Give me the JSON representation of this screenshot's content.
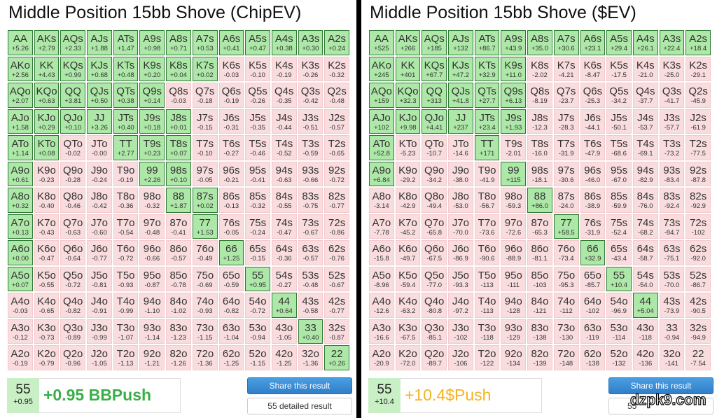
{
  "hands": [
    [
      "AA",
      "AKs",
      "AQs",
      "AJs",
      "ATs",
      "A9s",
      "A8s",
      "A7s",
      "A6s",
      "A5s",
      "A4s",
      "A3s",
      "A2s"
    ],
    [
      "AKo",
      "KK",
      "KQs",
      "KJs",
      "KTs",
      "K9s",
      "K8s",
      "K7s",
      "K6s",
      "K5s",
      "K4s",
      "K3s",
      "K2s"
    ],
    [
      "AQo",
      "KQo",
      "QQ",
      "QJs",
      "QTs",
      "Q9s",
      "Q8s",
      "Q7s",
      "Q6s",
      "Q5s",
      "Q4s",
      "Q3s",
      "Q2s"
    ],
    [
      "AJo",
      "KJo",
      "QJo",
      "JJ",
      "JTs",
      "J9s",
      "J8s",
      "J7s",
      "J6s",
      "J5s",
      "J4s",
      "J3s",
      "J2s"
    ],
    [
      "ATo",
      "KTo",
      "QTo",
      "JTo",
      "TT",
      "T9s",
      "T8s",
      "T7s",
      "T6s",
      "T5s",
      "T4s",
      "T3s",
      "T2s"
    ],
    [
      "A9o",
      "K9o",
      "Q9o",
      "J9o",
      "T9o",
      "99",
      "98s",
      "97s",
      "96s",
      "95s",
      "94s",
      "93s",
      "92s"
    ],
    [
      "A8o",
      "K8o",
      "Q8o",
      "J8o",
      "T8o",
      "98o",
      "88",
      "87s",
      "86s",
      "85s",
      "84s",
      "83s",
      "82s"
    ],
    [
      "A7o",
      "K7o",
      "Q7o",
      "J7o",
      "T7o",
      "97o",
      "87o",
      "77",
      "76s",
      "75s",
      "74s",
      "73s",
      "72s"
    ],
    [
      "A6o",
      "K6o",
      "Q6o",
      "J6o",
      "T6o",
      "96o",
      "86o",
      "76o",
      "66",
      "65s",
      "64s",
      "63s",
      "62s"
    ],
    [
      "A5o",
      "K5o",
      "Q5o",
      "J5o",
      "T5o",
      "95o",
      "85o",
      "75o",
      "65o",
      "55",
      "54s",
      "53s",
      "52s"
    ],
    [
      "A4o",
      "K4o",
      "Q4o",
      "J4o",
      "T4o",
      "94o",
      "84o",
      "74o",
      "64o",
      "54o",
      "44",
      "43s",
      "42s"
    ],
    [
      "A3o",
      "K3o",
      "Q3o",
      "J3o",
      "T3o",
      "93o",
      "83o",
      "73o",
      "63o",
      "53o",
      "43o",
      "33",
      "32s"
    ],
    [
      "A2o",
      "K2o",
      "Q2o",
      "J2o",
      "T2o",
      "92o",
      "82o",
      "72o",
      "62o",
      "52o",
      "42o",
      "32o",
      "22"
    ]
  ],
  "panels": [
    {
      "title": "Middle Position 15bb Shove (ChipEV)",
      "values": [
        [
          "+5.26",
          "+2.79",
          "+2.33",
          "+1.88",
          "+1.47",
          "+0.98",
          "+0.71",
          "+0.53",
          "+0.41",
          "+0.47",
          "+0.38",
          "+0.30",
          "+0.24"
        ],
        [
          "+2.56",
          "+4.43",
          "+0.99",
          "+0.68",
          "+0.48",
          "+0.20",
          "+0.04",
          "+0.02",
          "-0.03",
          "-0.10",
          "-0.19",
          "-0.26",
          "-0.32"
        ],
        [
          "+2.07",
          "+0.63",
          "+3.81",
          "+0.50",
          "+0.38",
          "+0.14",
          "-0.03",
          "-0.18",
          "-0.19",
          "-0.26",
          "-0.35",
          "-0.42",
          "-0.48"
        ],
        [
          "+1.58",
          "+0.29",
          "+0.10",
          "+3.26",
          "+0.40",
          "+0.18",
          "+0.01",
          "-0.15",
          "-0.31",
          "-0.35",
          "-0.44",
          "-0.51",
          "-0.57"
        ],
        [
          "+1.14",
          "+0.08",
          "-0.02",
          "-0.00",
          "+2.77",
          "+0.23",
          "+0.07",
          "-0.10",
          "-0.27",
          "-0.46",
          "-0.52",
          "-0.59",
          "-0.65"
        ],
        [
          "+0.61",
          "-0.23",
          "-0.28",
          "-0.24",
          "-0.19",
          "+2.26",
          "+0.10",
          "-0.05",
          "-0.21",
          "-0.41",
          "-0.63",
          "-0.66",
          "-0.72"
        ],
        [
          "+0.32",
          "-0.40",
          "-0.46",
          "-0.42",
          "-0.36",
          "-0.32",
          "+1.87",
          "+0.02",
          "-0.13",
          "-0.32",
          "-0.55",
          "-0.75",
          "-0.77"
        ],
        [
          "+0.13",
          "-0.43",
          "-0.63",
          "-0.60",
          "-0.54",
          "-0.48",
          "-0.41",
          "+1.53",
          "-0.05",
          "-0.24",
          "-0.47",
          "-0.67",
          "-0.86"
        ],
        [
          "+0.00",
          "-0.47",
          "-0.64",
          "-0.77",
          "-0.72",
          "-0.66",
          "-0.57",
          "-0.49",
          "+1.25",
          "-0.15",
          "-0.36",
          "-0.57",
          "-0.76"
        ],
        [
          "+0.07",
          "-0.55",
          "-0.72",
          "-0.81",
          "-0.93",
          "-0.87",
          "-0.78",
          "-0.69",
          "-0.59",
          "+0.95",
          "-0.27",
          "-0.48",
          "-0.67"
        ],
        [
          "-0.03",
          "-0.65",
          "-0.82",
          "-0.91",
          "-0.99",
          "-1.10",
          "-1.02",
          "-0.93",
          "-0.82",
          "-0.72",
          "+0.64",
          "-0.58",
          "-0.77"
        ],
        [
          "-0.12",
          "-0.73",
          "-0.89",
          "-0.99",
          "-1.07",
          "-1.14",
          "-1.23",
          "-1.15",
          "-1.04",
          "-0.94",
          "-1.05",
          "+0.40",
          "-0.87"
        ],
        [
          "-0.19",
          "-0.79",
          "-0.96",
          "-1.05",
          "-1.13",
          "-1.21",
          "-1.26",
          "-1.36",
          "-1.25",
          "-1.15",
          "-1.25",
          "-1.36",
          "+0.26"
        ]
      ],
      "summary": {
        "hand": "55",
        "value": "+0.95",
        "result": "+0.95 BBPush"
      },
      "buttons": {
        "share": "Share this result",
        "detail": "55 detailed result"
      }
    },
    {
      "title": "Middle Position 15bb Shove ($EV)",
      "values": [
        [
          "+525",
          "+266",
          "+185",
          "+132",
          "+86.7",
          "+43.9",
          "+35.0",
          "+30.6",
          "+23.1",
          "+29.4",
          "+26.1",
          "+22.4",
          "+18.4"
        ],
        [
          "+245",
          "+401",
          "+67.7",
          "+47.2",
          "+32.9",
          "+11.0",
          "-2.02",
          "-4.21",
          "-8.47",
          "-17.5",
          "-21.0",
          "-25.0",
          "-29.1"
        ],
        [
          "+159",
          "+32.3",
          "+313",
          "+41.8",
          "+27.7",
          "+6.13",
          "-8.19",
          "-23.7",
          "-25.3",
          "-34.2",
          "-37.7",
          "-41.7",
          "-45.9"
        ],
        [
          "+102",
          "+9.98",
          "+4.41",
          "+237",
          "+23.4",
          "+1.93",
          "-12.3",
          "-28.3",
          "-44.1",
          "-50.1",
          "-53.7",
          "-57.7",
          "-61.9"
        ],
        [
          "+52.8",
          "-5.23",
          "-10.7",
          "-14.6",
          "+171",
          "-2.01",
          "-16.0",
          "-31.9",
          "-47.9",
          "-68.6",
          "-69.1",
          "-73.2",
          "-77.5"
        ],
        [
          "+6.84",
          "-29.2",
          "-34.2",
          "-38.0",
          "-41.9",
          "+115",
          "-18.1",
          "-30.6",
          "-46.0",
          "-67.0",
          "-82.9",
          "-83.4",
          "-87.8"
        ],
        [
          "-3.14",
          "-42.9",
          "-49.4",
          "-53.0",
          "-56.7",
          "-59.3",
          "+86.0",
          "-24.0",
          "-38.9",
          "-59.9",
          "-76.0",
          "-92.4",
          "-92.9"
        ],
        [
          "-7.78",
          "-45.2",
          "-65.8",
          "-70.0",
          "-73.6",
          "-72.6",
          "-65.3",
          "+58.5",
          "-31.9",
          "-52.4",
          "-68.2",
          "-84.7",
          "-102"
        ],
        [
          "-15.8",
          "-49.7",
          "-67.5",
          "-86.9",
          "-90.6",
          "-88.9",
          "-81.1",
          "-73.4",
          "+32.9",
          "-43.4",
          "-58.7",
          "-75.1",
          "-92.0"
        ],
        [
          "-8.96",
          "-59.4",
          "-77.0",
          "-93.3",
          "-113",
          "-111",
          "-103",
          "-95.3",
          "-85.7",
          "+10.4",
          "-54.0",
          "-70.0",
          "-86.7"
        ],
        [
          "-12.6",
          "-63.2",
          "-80.8",
          "-97.2",
          "-113",
          "-128",
          "-121",
          "-112",
          "-102",
          "-96.9",
          "+5.04",
          "-73.9",
          "-90.5"
        ],
        [
          "-16.6",
          "-67.5",
          "-85.1",
          "-102",
          "-118",
          "-129",
          "-138",
          "-130",
          "-119",
          "-114",
          "-118",
          "-0.94",
          "-94.9"
        ],
        [
          "-20.9",
          "-72.0",
          "-89.7",
          "-106",
          "-122",
          "-134",
          "-139",
          "-148",
          "-138",
          "-132",
          "-136",
          "-141",
          "-7.54"
        ]
      ],
      "summary": {
        "hand": "55",
        "value": "+10.4",
        "result": "+10.4$Push"
      },
      "buttons": {
        "share": "Share this result",
        "detail": "55"
      }
    }
  ],
  "watermark": "dzpk9.com"
}
